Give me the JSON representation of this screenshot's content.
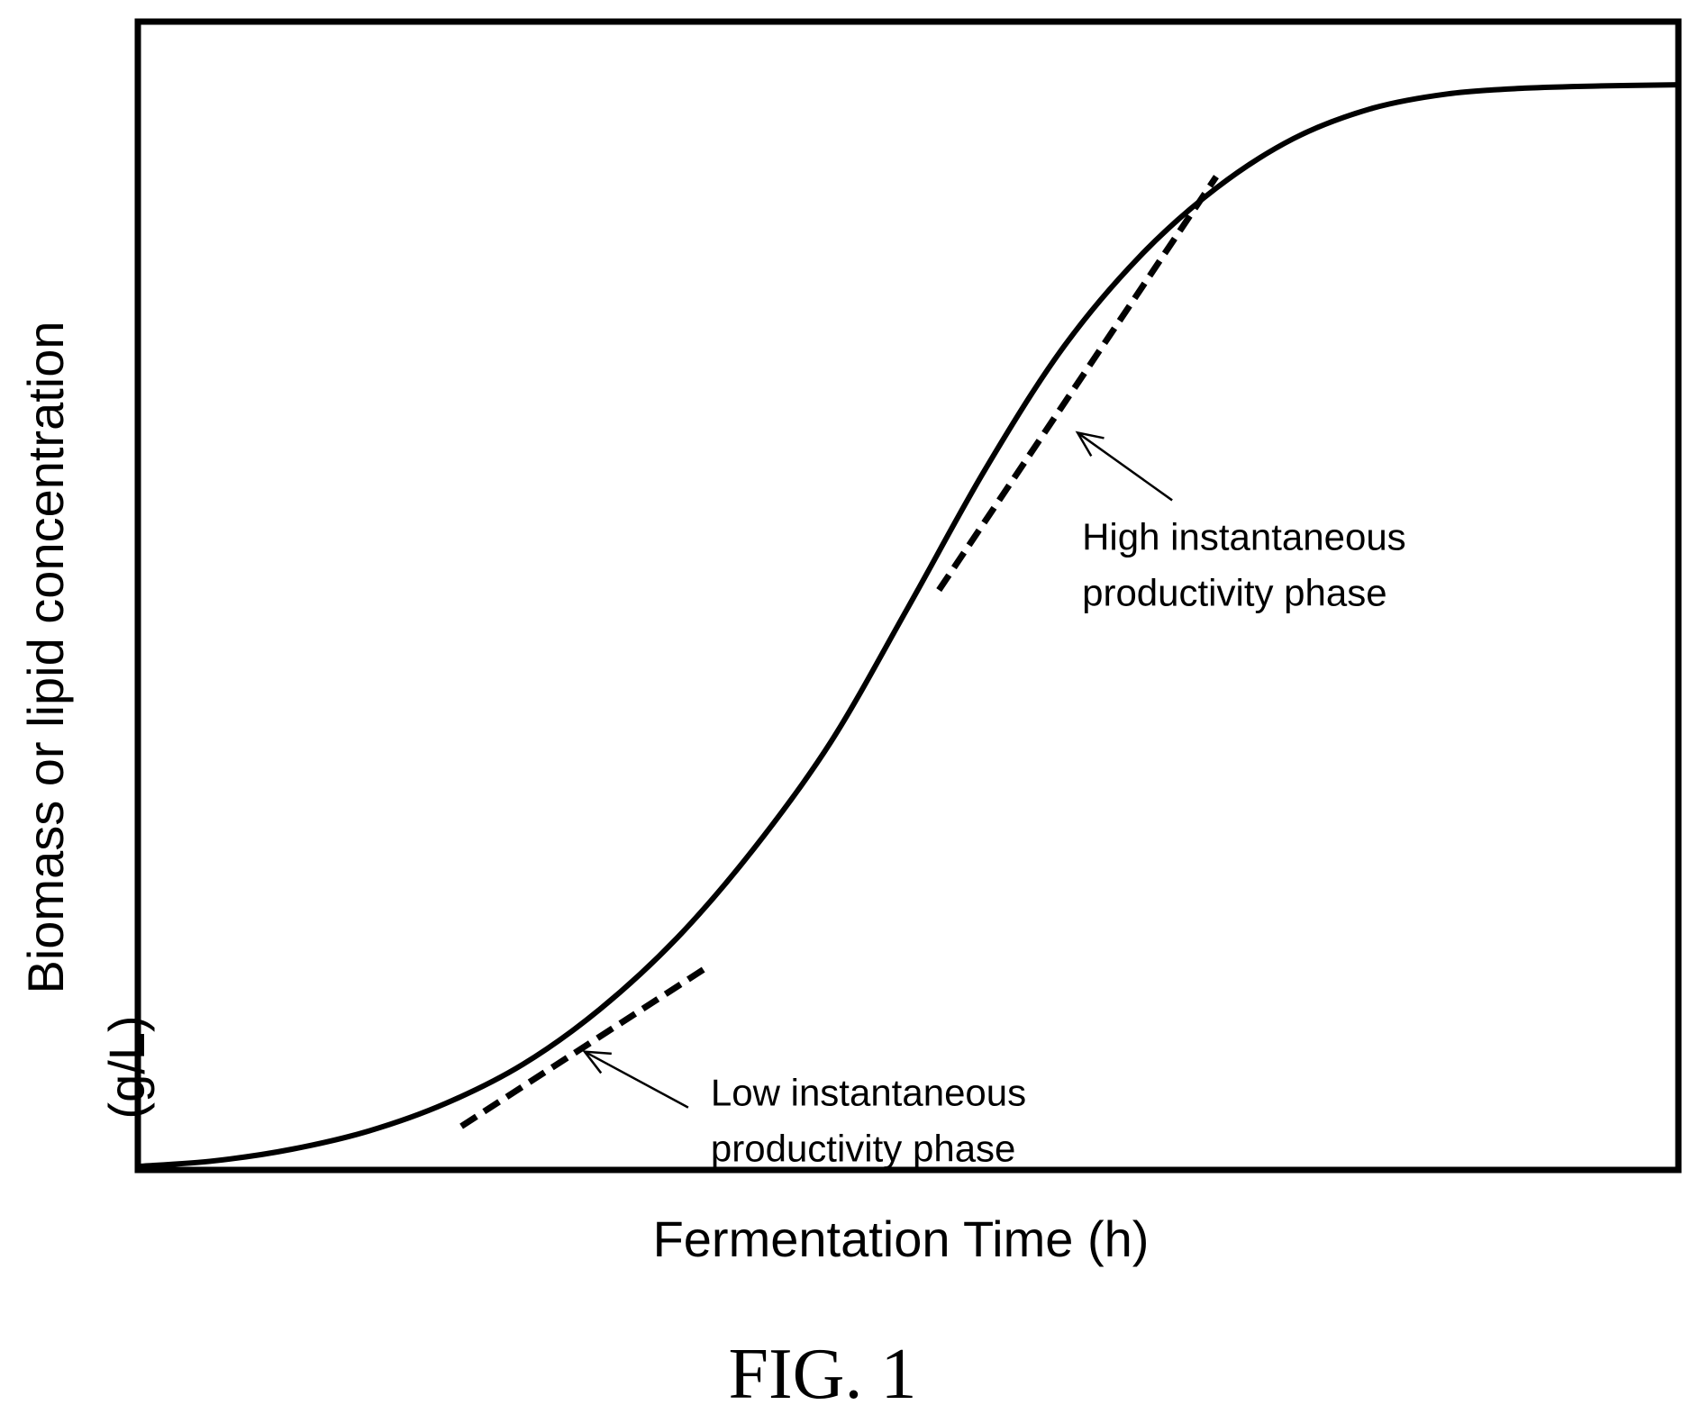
{
  "chart_data": {
    "type": "line",
    "title": "",
    "xlabel": "Fermentation Time (h)",
    "ylabel": "Biomass or lipid concentration (g/L)",
    "ylabel_lines": [
      "Biomass or lipid concentration",
      "(g/L)"
    ],
    "xlim": [
      0,
      100
    ],
    "ylim": [
      0,
      100
    ],
    "grid": false,
    "ticks_shown": false,
    "series": [
      {
        "style": "solid",
        "x": [
          0,
          5,
          10,
          15,
          20,
          25,
          30,
          35,
          40,
          45,
          50,
          55,
          60,
          65,
          70,
          75,
          80,
          85,
          90,
          95,
          100
        ],
        "y": [
          0.3,
          0.8,
          1.8,
          3.4,
          5.8,
          9.2,
          14.0,
          20.2,
          28.0,
          37.3,
          49.0,
          61.0,
          71.5,
          79.5,
          85.5,
          89.8,
          92.4,
          93.7,
          94.2,
          94.4,
          94.5
        ]
      }
    ],
    "tangent_lines": [
      {
        "style": "dashed",
        "x": [
          21,
          37
        ],
        "y": [
          3.8,
          17.7
        ]
      },
      {
        "style": "dashed",
        "x": [
          52,
          70
        ],
        "y": [
          50.5,
          86.5
        ]
      }
    ],
    "annotations": [
      {
        "lines": [
          "Low instantaneous",
          "productivity phase"
        ],
        "arrow_tip": {
          "x": 29,
          "y": 10.3
        }
      },
      {
        "lines": [
          "High instantaneous",
          "productivity phase"
        ],
        "arrow_tip": {
          "x": 61,
          "y": 64.2
        }
      }
    ]
  },
  "caption": "FIG. 1"
}
